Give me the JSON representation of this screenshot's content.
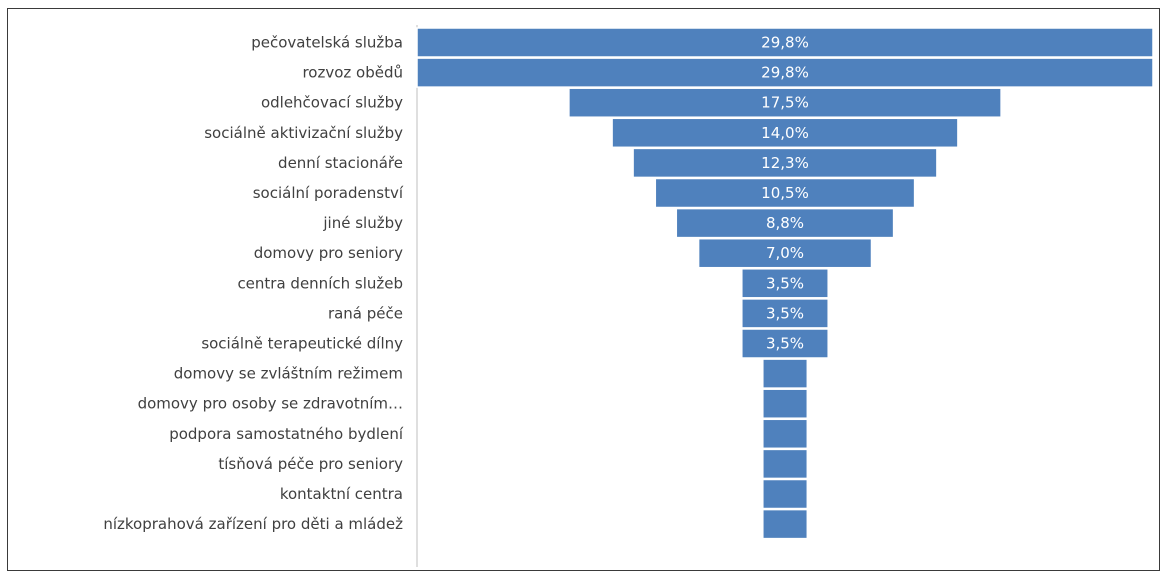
{
  "chart_data": {
    "type": "bar",
    "orientation": "horizontal",
    "style": "funnel",
    "categories": [
      "pečovatelská služba",
      "rozvoz obědů",
      "odlehčovací služby",
      "sociálně aktivizační služby",
      "denní stacionáře",
      "sociální poradenství",
      "jiné služby",
      "domovy pro seniory",
      "centra denních služeb",
      "raná péče",
      "sociálně terapeutické dílny",
      "domovy se zvláštním režimem",
      "domovy pro osoby se zdravotním…",
      "podpora samostatného bydlení",
      "tísňová péče pro seniory",
      "kontaktní centra",
      "nízkoprahová zařízení pro děti a mládež"
    ],
    "values": [
      29.8,
      29.8,
      17.5,
      14.0,
      12.3,
      10.5,
      8.8,
      7.0,
      3.5,
      3.5,
      3.5,
      1.8,
      1.8,
      1.8,
      1.8,
      1.8,
      1.8
    ],
    "labels": [
      "29,8%",
      "29,8%",
      "17,5%",
      "14,0%",
      "12,3%",
      "10,5%",
      "8,8%",
      "7,0%",
      "3,5%",
      "3,5%",
      "3,5%",
      "",
      "",
      "",
      "",
      "",
      ""
    ],
    "unit": "%",
    "title": "",
    "xlabel": "",
    "ylabel": "",
    "grid": false,
    "legend": "none",
    "bar_color": "#4f81bd"
  }
}
